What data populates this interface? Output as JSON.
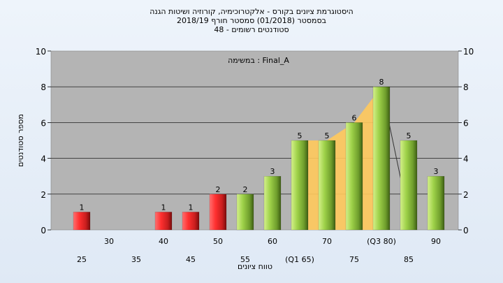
{
  "header": {
    "line1": "היסטוגרמת ציונים בקורס - אלקטרוכימיה, קורוזיה ושיטות הגנה",
    "line2": "בסמסטר  (01/2018)  סמסטר חורף 2018/19",
    "line3": "סטודנטים רשומים - 48"
  },
  "chart_data": {
    "type": "bar",
    "annotation": "במשימה : Final_A",
    "ylabel": "מספר סטודנטים",
    "xlabel": "טווח ציונים",
    "ylim": [
      0,
      10
    ],
    "yticks": [
      0,
      2,
      4,
      6,
      8,
      10
    ],
    "grid": true,
    "categories": [
      "25",
      "30",
      "35",
      "40",
      "45",
      "50",
      "55",
      "60",
      "(Q1 65)",
      "70",
      "75",
      "(Q3 80)",
      "85",
      "90"
    ],
    "values": [
      1,
      0,
      0,
      1,
      1,
      2,
      2,
      3,
      5,
      5,
      6,
      8,
      5,
      3
    ],
    "bar_colors": [
      "red",
      "red",
      "red",
      "red",
      "red",
      "red",
      "green",
      "green",
      "green",
      "green",
      "green",
      "green",
      "green",
      "green"
    ],
    "iqr_shading": {
      "from": "(Q1 65)",
      "to": "(Q3 80)"
    },
    "colors": {
      "red": "#d8232a",
      "green": "#8ec63f",
      "shade": "#ffc95c",
      "plot_bg": "#b4b4b4"
    }
  }
}
